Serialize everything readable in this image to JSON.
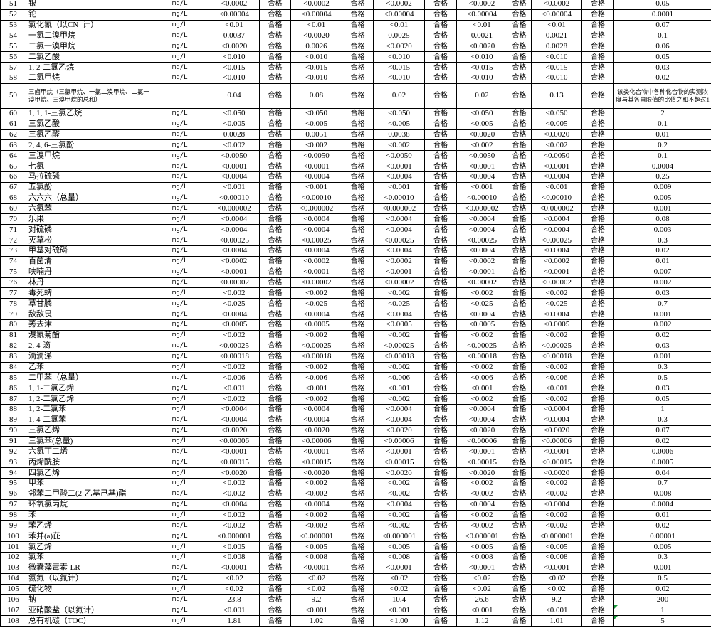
{
  "pass_label": "合格",
  "colors": {
    "grid": "#000000",
    "excel_flag": "#1a9a3a"
  },
  "rows": [
    {
      "no": "51",
      "name": "银",
      "unit": "mg/L",
      "values": [
        "<0.0002",
        "<0.0002",
        "<0.0002",
        "<0.0002",
        "<0.0002"
      ],
      "limit": "0.05"
    },
    {
      "no": "52",
      "name": "铊",
      "unit": "mg/L",
      "values": [
        "<0.00004",
        "<0.00004",
        "<0.00004",
        "<0.00004",
        "<0.00004"
      ],
      "limit": "0.0001"
    },
    {
      "no": "53",
      "name": "氯化氰（以CN⁻计）",
      "unit": "mg/L",
      "values": [
        "<0.01",
        "<0.01",
        "<0.01",
        "<0.01",
        "<0.01"
      ],
      "limit": "0.07"
    },
    {
      "no": "54",
      "name": "一氯二溴甲烷",
      "unit": "mg/L",
      "values": [
        "0.0037",
        "<0.0020",
        "0.0025",
        "0.0021",
        "0.0021"
      ],
      "limit": "0.1"
    },
    {
      "no": "55",
      "name": "二氯一溴甲烷",
      "unit": "mg/L",
      "values": [
        "<0.0020",
        "0.0026",
        "<0.0020",
        "<0.0020",
        "0.0028"
      ],
      "limit": "0.06"
    },
    {
      "no": "56",
      "name": "二氯乙酸",
      "unit": "mg/L",
      "values": [
        "<0.010",
        "<0.010",
        "<0.010",
        "<0.010",
        "<0.010"
      ],
      "limit": "0.05"
    },
    {
      "no": "57",
      "name": "1, 2-二氯乙烷",
      "unit": "mg/L",
      "values": [
        "<0.015",
        "<0.015",
        "<0.015",
        "<0.015",
        "<0.015"
      ],
      "limit": "0.03"
    },
    {
      "no": "58",
      "name": "二氯甲烷",
      "unit": "mg/L",
      "values": [
        "<0.010",
        "<0.010",
        "<0.010",
        "<0.010",
        "<0.010"
      ],
      "limit": "0.02"
    },
    {
      "no": "59",
      "name": "三卤甲烷（三氯甲烷、一氯二溴甲烷、二氯一溴甲烷、三溴甲烷的总和）",
      "unit": "—",
      "values": [
        "0.04",
        "0.08",
        "0.02",
        "0.02",
        "0.13"
      ],
      "limit": "该类化合物中各种化合物的实测浓度与其各自限值的比值之和不超过1",
      "tall": true
    },
    {
      "no": "60",
      "name": "1, 1, 1-三氯乙烷",
      "unit": "mg/L",
      "values": [
        "<0.050",
        "<0.050",
        "<0.050",
        "<0.050",
        "<0.050"
      ],
      "limit": "2"
    },
    {
      "no": "61",
      "name": "三氯乙酸",
      "unit": "mg/L",
      "values": [
        "<0.005",
        "<0.005",
        "<0.005",
        "<0.005",
        "<0.005"
      ],
      "limit": "0.1"
    },
    {
      "no": "62",
      "name": "三氯乙醛",
      "unit": "mg/L",
      "values": [
        "0.0028",
        "0.0051",
        "0.0038",
        "<0.0020",
        "<0.0020"
      ],
      "limit": "0.01"
    },
    {
      "no": "63",
      "name": "2, 4, 6-三氯酚",
      "unit": "mg/L",
      "values": [
        "<0.002",
        "<0.002",
        "<0.002",
        "<0.002",
        "<0.002"
      ],
      "limit": "0.2"
    },
    {
      "no": "64",
      "name": "三溴甲烷",
      "unit": "mg/L",
      "values": [
        "<0.0050",
        "<0.0050",
        "<0.0050",
        "<0.0050",
        "<0.0050"
      ],
      "limit": "0.1"
    },
    {
      "no": "65",
      "name": "七氯",
      "unit": "mg/L",
      "values": [
        "<0.0001",
        "<0.0001",
        "<0.0001",
        "<0.0001",
        "<0.0001"
      ],
      "limit": "0.0004"
    },
    {
      "no": "66",
      "name": "马拉硫磷",
      "unit": "mg/L",
      "values": [
        "<0.0004",
        "<0.0004",
        "<0.0004",
        "<0.0004",
        "<0.0004"
      ],
      "limit": "0.25"
    },
    {
      "no": "67",
      "name": "五氯酚",
      "unit": "mg/L",
      "values": [
        "<0.001",
        "<0.001",
        "<0.001",
        "<0.001",
        "<0.001"
      ],
      "limit": "0.009"
    },
    {
      "no": "68",
      "name": "六六六（总量）",
      "unit": "mg/L",
      "values": [
        "<0.00010",
        "<0.00010",
        "<0.00010",
        "<0.00010",
        "<0.00010"
      ],
      "limit": "0.005"
    },
    {
      "no": "69",
      "name": "六氯苯",
      "unit": "mg/L",
      "values": [
        "<0.000002",
        "<0.000002",
        "<0.000002",
        "<0.000002",
        "<0.000002"
      ],
      "limit": "0.001"
    },
    {
      "no": "70",
      "name": "乐果",
      "unit": "mg/L",
      "values": [
        "<0.0004",
        "<0.0004",
        "<0.0004",
        "<0.0004",
        "<0.0004"
      ],
      "limit": "0.08"
    },
    {
      "no": "71",
      "name": "对硫磷",
      "unit": "mg/L",
      "values": [
        "<0.0004",
        "<0.0004",
        "<0.0004",
        "<0.0004",
        "<0.0004"
      ],
      "limit": "0.003"
    },
    {
      "no": "72",
      "name": "灭草松",
      "unit": "mg/L",
      "values": [
        "<0.00025",
        "<0.00025",
        "<0.00025",
        "<0.00025",
        "<0.00025"
      ],
      "limit": "0.3"
    },
    {
      "no": "73",
      "name": "甲基对硫磷",
      "unit": "mg/L",
      "values": [
        "<0.0004",
        "<0.0004",
        "<0.0004",
        "<0.0004",
        "<0.0004"
      ],
      "limit": "0.02"
    },
    {
      "no": "74",
      "name": "百菌清",
      "unit": "mg/L",
      "values": [
        "<0.0002",
        "<0.0002",
        "<0.0002",
        "<0.0002",
        "<0.0002"
      ],
      "limit": "0.01"
    },
    {
      "no": "75",
      "name": "呋喃丹",
      "unit": "mg/L",
      "values": [
        "<0.0001",
        "<0.0001",
        "<0.0001",
        "<0.0001",
        "<0.0001"
      ],
      "limit": "0.007"
    },
    {
      "no": "76",
      "name": "林丹",
      "unit": "mg/L",
      "values": [
        "<0.00002",
        "<0.00002",
        "<0.00002",
        "<0.00002",
        "<0.00002"
      ],
      "limit": "0.002"
    },
    {
      "no": "77",
      "name": "毒死蜱",
      "unit": "mg/L",
      "values": [
        "<0.002",
        "<0.002",
        "<0.002",
        "<0.002",
        "<0.002"
      ],
      "limit": "0.03"
    },
    {
      "no": "78",
      "name": "草甘膦",
      "unit": "mg/L",
      "values": [
        "<0.025",
        "<0.025",
        "<0.025",
        "<0.025",
        "<0.025"
      ],
      "limit": "0.7"
    },
    {
      "no": "79",
      "name": "敌敌畏",
      "unit": "mg/L",
      "values": [
        "<0.0004",
        "<0.0004",
        "<0.0004",
        "<0.0004",
        "<0.0004"
      ],
      "limit": "0.001"
    },
    {
      "no": "80",
      "name": "莠去津",
      "unit": "mg/L",
      "values": [
        "<0.0005",
        "<0.0005",
        "<0.0005",
        "<0.0005",
        "<0.0005"
      ],
      "limit": "0.002"
    },
    {
      "no": "81",
      "name": "溴氰菊酯",
      "unit": "mg/L",
      "values": [
        "<0.002",
        "<0.002",
        "<0.002",
        "<0.002",
        "<0.002"
      ],
      "limit": "0.02"
    },
    {
      "no": "82",
      "name": "2, 4-滴",
      "unit": "mg/L",
      "values": [
        "<0.00025",
        "<0.00025",
        "<0.00025",
        "<0.00025",
        "<0.00025"
      ],
      "limit": "0.03"
    },
    {
      "no": "83",
      "name": "滴滴涕",
      "unit": "mg/L",
      "values": [
        "<0.00018",
        "<0.00018",
        "<0.00018",
        "<0.00018",
        "<0.00018"
      ],
      "limit": "0.001"
    },
    {
      "no": "84",
      "name": "乙苯",
      "unit": "mg/L",
      "values": [
        "<0.002",
        "<0.002",
        "<0.002",
        "<0.002",
        "<0.002"
      ],
      "limit": "0.3"
    },
    {
      "no": "85",
      "name": "二甲苯（总量）",
      "unit": "mg/L",
      "values": [
        "<0.006",
        "<0.006",
        "<0.006",
        "<0.006",
        "<0.006"
      ],
      "limit": "0.5"
    },
    {
      "no": "86",
      "name": "1, 1-二氯乙烯",
      "unit": "mg/L",
      "values": [
        "<0.001",
        "<0.001",
        "<0.001",
        "<0.001",
        "<0.001"
      ],
      "limit": "0.03"
    },
    {
      "no": "87",
      "name": "1, 2-二氯乙烯",
      "unit": "mg/L",
      "values": [
        "<0.002",
        "<0.002",
        "<0.002",
        "<0.002",
        "<0.002"
      ],
      "limit": "0.05"
    },
    {
      "no": "88",
      "name": "1, 2-二氯苯",
      "unit": "mg/L",
      "values": [
        "<0.0004",
        "<0.0004",
        "<0.0004",
        "<0.0004",
        "<0.0004"
      ],
      "limit": "1"
    },
    {
      "no": "89",
      "name": "1, 4-二氯苯",
      "unit": "mg/L",
      "values": [
        "<0.0004",
        "<0.0004",
        "<0.0004",
        "<0.0004",
        "<0.0004"
      ],
      "limit": "0.3"
    },
    {
      "no": "90",
      "name": "三氯乙烯",
      "unit": "mg/L",
      "values": [
        "<0.0020",
        "<0.0020",
        "<0.0020",
        "<0.0020",
        "<0.0020"
      ],
      "limit": "0.07"
    },
    {
      "no": "91",
      "name": "三氯苯(总量)",
      "unit": "mg/L",
      "values": [
        "<0.00006",
        "<0.00006",
        "<0.00006",
        "<0.00006",
        "<0.00006"
      ],
      "limit": "0.02"
    },
    {
      "no": "92",
      "name": "六氯丁二烯",
      "unit": "mg/L",
      "values": [
        "<0.0001",
        "<0.0001",
        "<0.0001",
        "<0.0001",
        "<0.0001"
      ],
      "limit": "0.0006"
    },
    {
      "no": "93",
      "name": "丙烯酰胺",
      "unit": "mg/L",
      "values": [
        "<0.00015",
        "<0.00015",
        "<0.00015",
        "<0.00015",
        "<0.00015"
      ],
      "limit": "0.0005"
    },
    {
      "no": "94",
      "name": "四氯乙烯",
      "unit": "mg/L",
      "values": [
        "<0.0020",
        "<0.0020",
        "<0.0020",
        "<0.0020",
        "<0.0020"
      ],
      "limit": "0.04"
    },
    {
      "no": "95",
      "name": "甲苯",
      "unit": "mg/L",
      "values": [
        "<0.002",
        "<0.002",
        "<0.002",
        "<0.002",
        "<0.002"
      ],
      "limit": "0.7"
    },
    {
      "no": "96",
      "name": "邻苯二甲酸二(2-乙基己基)酯",
      "unit": "mg/L",
      "values": [
        "<0.002",
        "<0.002",
        "<0.002",
        "<0.002",
        "<0.002"
      ],
      "limit": "0.008"
    },
    {
      "no": "97",
      "name": "环氧氯丙烷",
      "unit": "mg/L",
      "values": [
        "<0.0004",
        "<0.0004",
        "<0.0004",
        "<0.0004",
        "<0.0004"
      ],
      "limit": "0.0004"
    },
    {
      "no": "98",
      "name": "苯",
      "unit": "mg/L",
      "values": [
        "<0.002",
        "<0.002",
        "<0.002",
        "<0.002",
        "<0.002"
      ],
      "limit": "0.01"
    },
    {
      "no": "99",
      "name": "苯乙烯",
      "unit": "mg/L",
      "values": [
        "<0.002",
        "<0.002",
        "<0.002",
        "<0.002",
        "<0.002"
      ],
      "limit": "0.02"
    },
    {
      "no": "100",
      "name": "苯并(a)芘",
      "unit": "mg/L",
      "values": [
        "<0.000001",
        "<0.000001",
        "<0.000001",
        "<0.000001",
        "<0.000001"
      ],
      "limit": "0.00001"
    },
    {
      "no": "101",
      "name": "氯乙烯",
      "unit": "mg/L",
      "values": [
        "<0.005",
        "<0.005",
        "<0.005",
        "<0.005",
        "<0.005"
      ],
      "limit": "0.005"
    },
    {
      "no": "102",
      "name": "氯苯",
      "unit": "mg/L",
      "values": [
        "<0.008",
        "<0.008",
        "<0.008",
        "<0.008",
        "<0.008"
      ],
      "limit": "0.3"
    },
    {
      "no": "103",
      "name": "微囊藻毒素-LR",
      "unit": "mg/L",
      "values": [
        "<0.0001",
        "<0.0001",
        "<0.0001",
        "<0.0001",
        "<0.0001"
      ],
      "limit": "0.001"
    },
    {
      "no": "104",
      "name": "氨氮（以氮计）",
      "unit": "mg/L",
      "values": [
        "<0.02",
        "<0.02",
        "<0.02",
        "<0.02",
        "<0.02"
      ],
      "limit": "0.5"
    },
    {
      "no": "105",
      "name": "硫化物",
      "unit": "mg/L",
      "values": [
        "<0.02",
        "<0.02",
        "<0.02",
        "<0.02",
        "<0.02"
      ],
      "limit": "0.02"
    },
    {
      "no": "106",
      "name": "钠",
      "unit": "mg/L",
      "values": [
        "23.8",
        "9.2",
        "10.4",
        "26.6",
        "9.2"
      ],
      "limit": "200"
    },
    {
      "no": "107",
      "name": "亚硝酸盐（以氮计）",
      "unit": "mg/L",
      "values": [
        "<0.001",
        "<0.001",
        "<0.001",
        "<0.001",
        "<0.001"
      ],
      "limit": "1",
      "flag": true
    },
    {
      "no": "108",
      "name": "总有机碳（TOC）",
      "unit": "mg/L",
      "values": [
        "1.81",
        "1.02",
        "<1.00",
        "1.12",
        "1.01"
      ],
      "limit": "5",
      "flag": true
    }
  ]
}
